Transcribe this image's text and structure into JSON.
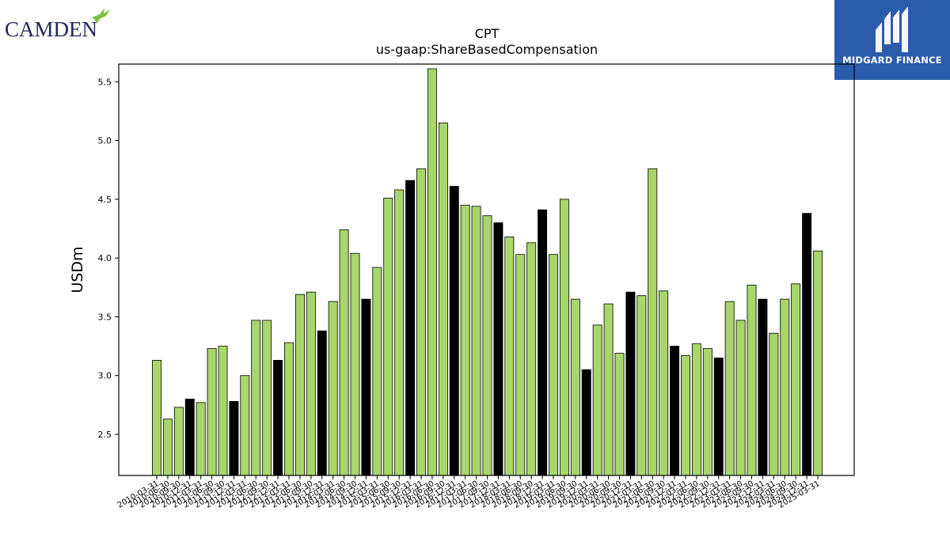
{
  "logos": {
    "camden": {
      "text": "CAMDEN"
    },
    "midgard": {
      "text": "MIDGARD FINANCE"
    }
  },
  "colors": {
    "bar_regular": "#a8d66a",
    "bar_highlight": "#000000",
    "bar_edge": "#000000",
    "midgard_blue": "#2b5bab",
    "camden_navy": "#23265a",
    "camden_green": "#7cc242"
  },
  "chart_data": {
    "type": "bar",
    "title": "CPT",
    "subtitle": "us-gaap:ShareBasedCompensation",
    "xlabel": "",
    "ylabel": "USDm",
    "ylim": [
      2.15,
      5.65
    ],
    "yticks": [
      2.5,
      3.0,
      3.5,
      4.0,
      4.5,
      5.0,
      5.5
    ],
    "ytick_labels": [
      "2.5",
      "3.0",
      "3.5",
      "4.0",
      "4.5",
      "5.0",
      "5.5"
    ],
    "grid": false,
    "categories": [
      "2010-03-31",
      "2010-06-30",
      "2010-09-30",
      "2010-12-31",
      "2011-03-31",
      "2011-06-30",
      "2011-09-30",
      "2011-12-31",
      "2012-03-31",
      "2012-06-30",
      "2012-09-30",
      "2012-12-31",
      "2013-03-31",
      "2013-06-30",
      "2013-09-30",
      "2013-12-31",
      "2014-03-31",
      "2014-06-30",
      "2014-09-30",
      "2014-12-31",
      "2015-03-31",
      "2015-06-30",
      "2015-09-30",
      "2015-12-31",
      "2016-03-31",
      "2016-06-30",
      "2016-09-30",
      "2016-12-31",
      "2017-03-31",
      "2017-06-30",
      "2017-09-30",
      "2017-12-31",
      "2018-03-31",
      "2018-06-30",
      "2018-09-30",
      "2018-12-31",
      "2019-03-31",
      "2019-06-30",
      "2019-09-30",
      "2019-12-31",
      "2020-03-31",
      "2020-06-30",
      "2020-09-30",
      "2020-12-31",
      "2021-03-31",
      "2021-06-30",
      "2021-09-30",
      "2021-12-31",
      "2022-03-31",
      "2022-06-30",
      "2022-09-30",
      "2022-12-31",
      "2023-03-31",
      "2023-06-30",
      "2023-09-30",
      "2023-12-31",
      "2024-03-31",
      "2024-06-30",
      "2024-09-30",
      "2024-12-31",
      "2025-03-31"
    ],
    "values": [
      3.13,
      2.63,
      2.73,
      2.8,
      2.77,
      3.23,
      3.25,
      2.78,
      3.0,
      3.47,
      3.47,
      3.13,
      3.28,
      3.69,
      3.71,
      3.38,
      3.63,
      4.24,
      4.04,
      3.65,
      3.92,
      4.51,
      4.58,
      4.66,
      4.76,
      5.61,
      5.15,
      4.61,
      4.45,
      4.44,
      4.36,
      4.3,
      4.18,
      4.03,
      4.13,
      4.41,
      4.03,
      4.5,
      3.65,
      3.05,
      3.43,
      3.61,
      3.19,
      3.71,
      3.68,
      4.76,
      3.72,
      3.25,
      3.17,
      3.27,
      3.23,
      3.15,
      3.63,
      3.47,
      3.77,
      3.65,
      3.36,
      3.65,
      3.78,
      4.38,
      4.06
    ],
    "highlighted_categories": [
      "2010-12-31",
      "2011-12-31",
      "2012-12-31",
      "2013-12-31",
      "2014-12-31",
      "2015-12-31",
      "2016-12-31",
      "2017-12-31",
      "2018-12-31",
      "2019-12-31",
      "2020-12-31",
      "2021-12-31",
      "2022-12-31",
      "2023-12-31",
      "2024-12-31"
    ]
  }
}
